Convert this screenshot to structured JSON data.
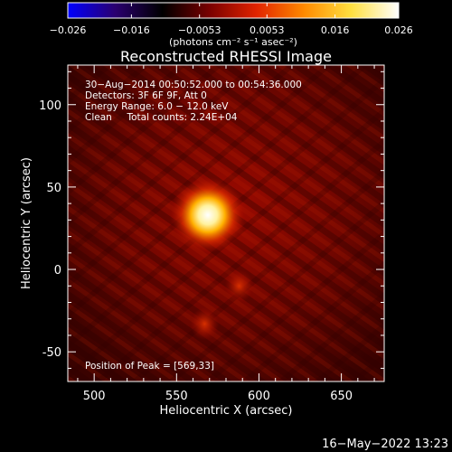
{
  "colorbar": {
    "tick_labels": [
      "−0.026",
      "−0.016",
      "−0.0053",
      "0.0053",
      "0.016",
      "0.026"
    ],
    "tick_values": [
      -0.026,
      -0.016,
      -0.0053,
      0.0053,
      0.016,
      0.026
    ],
    "range": [
      -0.026,
      0.026
    ],
    "unit_label": "(photons cm⁻² s⁻¹ asec⁻²)",
    "stops": [
      "#0000ff",
      "#2a0070",
      "#000000",
      "#7a0000",
      "#e22400",
      "#ff8a00",
      "#ffe040",
      "#ffffff"
    ]
  },
  "chart_data": {
    "type": "heatmap",
    "title": "Reconstructed RHESSI Image",
    "xlabel": "Heliocentric X (arcsec)",
    "ylabel": "Heliocentric Y (arcsec)",
    "xlim": [
      484,
      676
    ],
    "ylim": [
      -68,
      124
    ],
    "xticks": [
      500,
      550,
      600,
      650
    ],
    "yticks": [
      -50,
      0,
      50,
      100
    ],
    "annotations": [
      "30−Aug−2014 00:50:52.000 to 00:54:36.000",
      "Detectors: 3F 6F 9F, Att 0",
      "Energy Range: 6.0 − 12.0 keV",
      "Clean     Total counts: 2.24E+04"
    ],
    "peak_label": "Position of Peak = [569,33]",
    "sources": [
      {
        "x": 569,
        "y": 33,
        "intensity": 0.026
      },
      {
        "x": 588,
        "y": -10,
        "intensity": 0.008
      },
      {
        "x": 567,
        "y": -33,
        "intensity": 0.007
      }
    ]
  },
  "footer": {
    "timestamp": "16−May−2022 13:23"
  }
}
